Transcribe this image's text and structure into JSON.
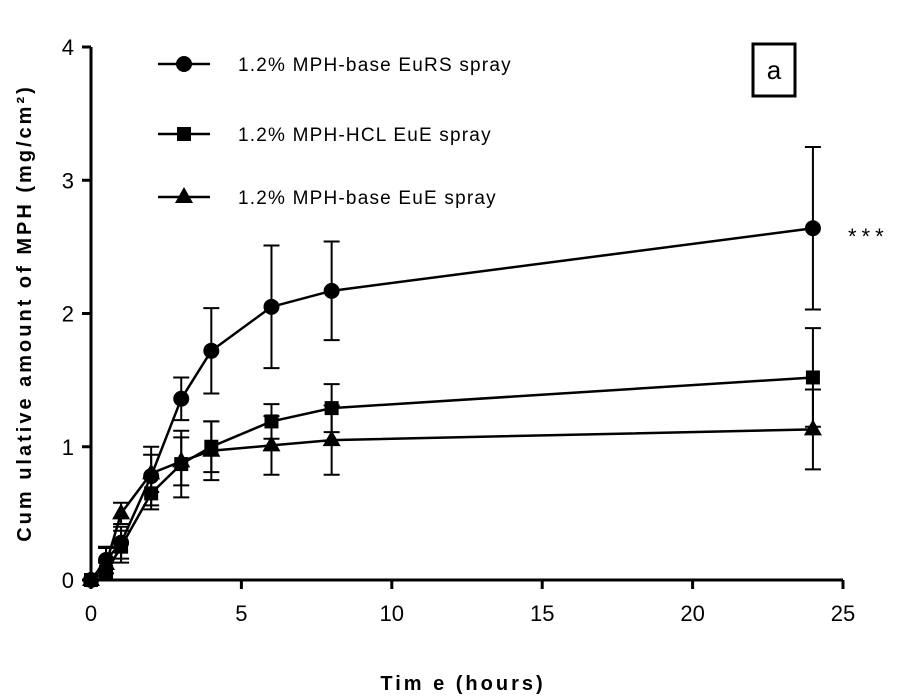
{
  "chart_data": {
    "type": "line",
    "xlabel": "Tim e (hours)",
    "ylabel": "Cum ulative amount of MPH (mg/cm²)",
    "xlim": [
      0,
      25
    ],
    "ylim": [
      0,
      4
    ],
    "xticks": [
      "0",
      "5",
      "10",
      "15",
      "20",
      "25"
    ],
    "yticks": [
      "0",
      "1",
      "2",
      "3",
      "4"
    ],
    "panel_label": "a",
    "annotation": "***",
    "grid": false,
    "legend_position": "top-left",
    "series": [
      {
        "name": "1.2% MPH-base EuRS spray",
        "marker": "circle",
        "x": [
          0,
          0.5,
          1,
          2,
          3,
          4,
          6,
          8,
          24
        ],
        "y": [
          0,
          0.15,
          0.28,
          0.78,
          1.36,
          1.72,
          2.05,
          2.17,
          2.64
        ],
        "error": [
          0.02,
          0.1,
          0.12,
          0.22,
          0.16,
          0.32,
          0.46,
          0.37,
          0.61
        ]
      },
      {
        "name": "1.2% MPH-HCL EuE spray",
        "marker": "square",
        "x": [
          0,
          0.5,
          1,
          2,
          3,
          4,
          6,
          8,
          24
        ],
        "y": [
          0,
          0.06,
          0.25,
          0.65,
          0.87,
          1.0,
          1.19,
          1.29,
          1.52
        ],
        "error": [
          0.02,
          0.07,
          0.12,
          0.12,
          0.25,
          0.19,
          0.13,
          0.18,
          0.37
        ]
      },
      {
        "name": "1.2% MPH-base EuE spray",
        "marker": "triangle",
        "x": [
          0,
          0.5,
          1,
          2,
          3,
          4,
          6,
          8,
          24
        ],
        "y": [
          0,
          0.12,
          0.5,
          0.8,
          0.89,
          0.97,
          1.01,
          1.05,
          1.13
        ],
        "error": [
          0.02,
          0.12,
          0.08,
          0.14,
          0.18,
          0.22,
          0.22,
          0.26,
          0.3
        ]
      }
    ]
  },
  "colors": {
    "ink": "#000000",
    "background": "#ffffff"
  }
}
